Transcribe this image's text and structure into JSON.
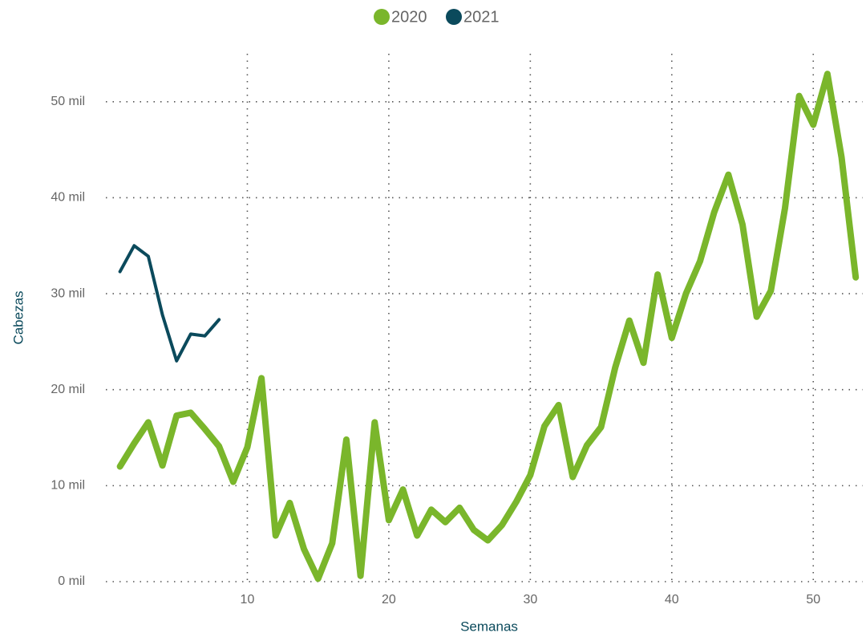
{
  "chart_data": {
    "type": "line",
    "x_label": "Semanas",
    "y_label": "Cabezas",
    "x": [
      1,
      2,
      3,
      4,
      5,
      6,
      7,
      8,
      9,
      10,
      11,
      12,
      13,
      14,
      15,
      16,
      17,
      18,
      19,
      20,
      21,
      22,
      23,
      24,
      25,
      26,
      27,
      28,
      29,
      30,
      31,
      32,
      33,
      34,
      35,
      36,
      37,
      38,
      39,
      40,
      41,
      42,
      43,
      44,
      45,
      46,
      47,
      48,
      49,
      50,
      51,
      52,
      53
    ],
    "series": [
      {
        "name": "2020",
        "color": "#7ab62b",
        "values": [
          12000,
          14400,
          16600,
          12100,
          17300,
          17600,
          15900,
          14100,
          10400,
          14000,
          21200,
          4800,
          8200,
          3400,
          300,
          4000,
          14800,
          600,
          16600,
          6400,
          9600,
          4800,
          7500,
          6200,
          7700,
          5400,
          4300,
          5900,
          8300,
          11100,
          16200,
          18400,
          10900,
          14200,
          16100,
          22300,
          27200,
          22800,
          32000,
          25400,
          30000,
          33400,
          38500,
          42400,
          37200,
          27600,
          30300,
          38900,
          50600,
          47600,
          52900,
          44200,
          31700
        ]
      },
      {
        "name": "2021",
        "color": "#0b4a5c",
        "values": [
          32300,
          35000,
          33900,
          27800,
          23000,
          25800,
          25600,
          27300,
          null,
          null,
          null,
          null,
          null,
          null,
          null,
          null,
          null,
          null,
          null,
          null,
          null,
          null,
          null,
          null,
          null,
          null,
          null,
          null,
          null,
          null,
          null,
          null,
          null,
          null,
          null,
          null,
          null,
          null,
          null,
          null,
          null,
          null,
          null,
          null,
          null,
          null,
          null,
          null,
          null,
          null,
          null,
          null,
          null
        ]
      }
    ],
    "xlim": [
      0,
      53.5
    ],
    "xticks": [
      10,
      20,
      30,
      40,
      50
    ],
    "ylim": [
      0,
      55000
    ],
    "yticks": [
      {
        "value": 0,
        "label": "0 mil"
      },
      {
        "value": 10000,
        "label": "10 mil"
      },
      {
        "value": 20000,
        "label": "20 mil"
      },
      {
        "value": 30000,
        "label": "30 mil"
      },
      {
        "value": 40000,
        "label": "40 mil"
      },
      {
        "value": 50000,
        "label": "50 mil"
      }
    ],
    "grid": true,
    "legend": "top"
  }
}
